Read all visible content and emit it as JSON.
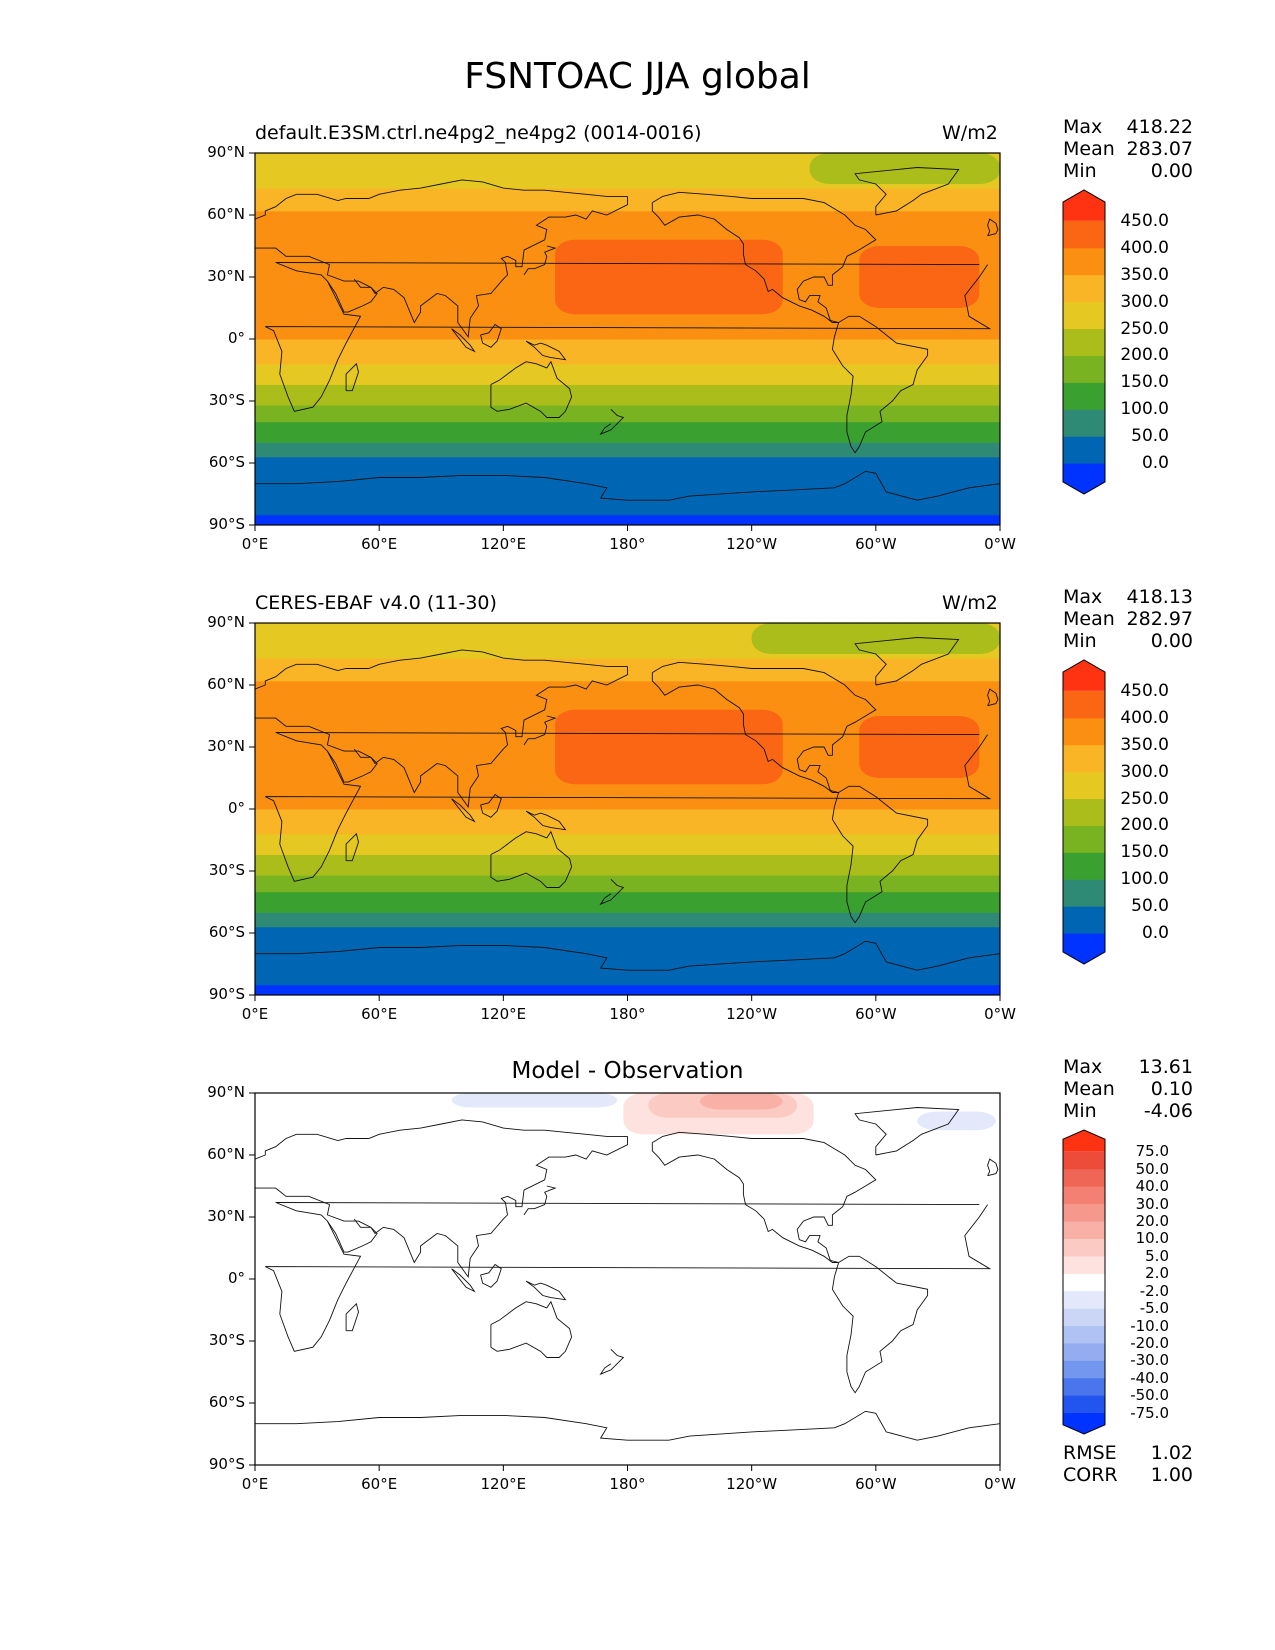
{
  "figure_title": "FSNTOAC JJA global",
  "colors": {
    "levels_main": [
      "#0033ff",
      "#0066b3",
      "#2e8a74",
      "#3aa130",
      "#7ab321",
      "#aabd1b",
      "#e6c822",
      "#fab526",
      "#fa8f11",
      "#fa6614",
      "#ff3311"
    ],
    "levels_diff": [
      "#0033ff",
      "#2255f0",
      "#4a75ec",
      "#7396ee",
      "#93adf0",
      "#b0c2f3",
      "#cbd6f6",
      "#e3e9fb",
      "#ffffff",
      "#fde2df",
      "#fbcac3",
      "#f9b1a7",
      "#f6998c",
      "#f38072",
      "#f06656",
      "#ee4c3b",
      "#ff3311"
    ]
  },
  "panels": [
    {
      "id": "test",
      "title": "default.E3SM.ctrl.ne4pg2_ne4pg2 (0014-0016)",
      "units": "W/m2",
      "stats": [
        {
          "label": "Max",
          "value": "418.22"
        },
        {
          "label": "Mean",
          "value": "283.07"
        },
        {
          "label": "Min",
          "value": "0.00"
        }
      ],
      "colorbar_ticks": [
        "450.0",
        "400.0",
        "350.0",
        "300.0",
        "250.0",
        "200.0",
        "150.0",
        "100.0",
        "50.0",
        "0.0"
      ],
      "lat_bands": [
        {
          "lat": [
            -90,
            -85
          ],
          "level": 0
        },
        {
          "lat": [
            -85,
            -57
          ],
          "level": 1
        },
        {
          "lat": [
            -57,
            -50
          ],
          "level": 2
        },
        {
          "lat": [
            -50,
            -40
          ],
          "level": 3
        },
        {
          "lat": [
            -40,
            -32
          ],
          "level": 4
        },
        {
          "lat": [
            -32,
            -22
          ],
          "level": 5
        },
        {
          "lat": [
            -22,
            -12
          ],
          "level": 6
        },
        {
          "lat": [
            -12,
            0
          ],
          "level": 7
        },
        {
          "lat": [
            0,
            13
          ],
          "level": 8
        },
        {
          "lat": [
            13,
            27
          ],
          "level": 8
        },
        {
          "lat": [
            27,
            62
          ],
          "level": 8
        },
        {
          "lat": [
            62,
            73
          ],
          "level": 7
        },
        {
          "lat": [
            73,
            90
          ],
          "level": 6
        }
      ],
      "patches": [
        {
          "lon": [
            145,
            255
          ],
          "lat": [
            12,
            48
          ],
          "level": 9
        },
        {
          "lon": [
            292,
            350
          ],
          "lat": [
            15,
            45
          ],
          "level": 9
        },
        {
          "lon": [
            268,
            360
          ],
          "lat": [
            75,
            90
          ],
          "level": 5
        }
      ]
    },
    {
      "id": "reference",
      "title": "CERES-EBAF v4.0 (11-30)",
      "units": "W/m2",
      "stats": [
        {
          "label": "Max",
          "value": "418.13"
        },
        {
          "label": "Mean",
          "value": "282.97"
        },
        {
          "label": "Min",
          "value": "0.00"
        }
      ],
      "colorbar_ticks": [
        "450.0",
        "400.0",
        "350.0",
        "300.0",
        "250.0",
        "200.0",
        "150.0",
        "100.0",
        "50.0",
        "0.0"
      ],
      "lat_bands": [
        {
          "lat": [
            -90,
            -85
          ],
          "level": 0
        },
        {
          "lat": [
            -85,
            -57
          ],
          "level": 1
        },
        {
          "lat": [
            -57,
            -50
          ],
          "level": 2
        },
        {
          "lat": [
            -50,
            -40
          ],
          "level": 3
        },
        {
          "lat": [
            -40,
            -32
          ],
          "level": 4
        },
        {
          "lat": [
            -32,
            -22
          ],
          "level": 5
        },
        {
          "lat": [
            -22,
            -12
          ],
          "level": 6
        },
        {
          "lat": [
            -12,
            0
          ],
          "level": 7
        },
        {
          "lat": [
            0,
            13
          ],
          "level": 8
        },
        {
          "lat": [
            13,
            27
          ],
          "level": 8
        },
        {
          "lat": [
            27,
            62
          ],
          "level": 8
        },
        {
          "lat": [
            62,
            73
          ],
          "level": 7
        },
        {
          "lat": [
            73,
            90
          ],
          "level": 6
        }
      ],
      "patches": [
        {
          "lon": [
            145,
            255
          ],
          "lat": [
            12,
            48
          ],
          "level": 9
        },
        {
          "lon": [
            292,
            350
          ],
          "lat": [
            15,
            45
          ],
          "level": 9
        },
        {
          "lon": [
            240,
            360
          ],
          "lat": [
            75,
            90
          ],
          "level": 5
        }
      ]
    },
    {
      "id": "difference",
      "title": "Model - Observation",
      "units": "",
      "stats": [
        {
          "label": "Max",
          "value": "13.61"
        },
        {
          "label": "Mean",
          "value": "0.10"
        },
        {
          "label": "Min",
          "value": "-4.06"
        }
      ],
      "colorbar_ticks": [
        "75.0",
        "50.0",
        "40.0",
        "30.0",
        "20.0",
        "10.0",
        "5.0",
        "2.0",
        "-2.0",
        "-5.0",
        "-10.0",
        "-20.0",
        "-30.0",
        "-40.0",
        "-50.0",
        "-75.0"
      ],
      "metrics": [
        {
          "label": "RMSE",
          "value": "1.02"
        },
        {
          "label": "CORR",
          "value": "1.00"
        }
      ],
      "patches": [
        {
          "lon": [
            95,
            175
          ],
          "lat": [
            83,
            90
          ],
          "level": 7
        },
        {
          "lon": [
            178,
            270
          ],
          "lat": [
            70,
            90
          ],
          "level": 9
        },
        {
          "lon": [
            190,
            262
          ],
          "lat": [
            78,
            90
          ],
          "level": 10
        },
        {
          "lon": [
            215,
            255
          ],
          "lat": [
            82,
            90
          ],
          "level": 11
        },
        {
          "lon": [
            320,
            358
          ],
          "lat": [
            72,
            81
          ],
          "level": 7
        }
      ]
    }
  ],
  "axes": {
    "x_ticks": [
      "0°E",
      "60°E",
      "120°E",
      "180°",
      "120°W",
      "60°W",
      "0°W"
    ],
    "y_ticks": [
      "90°N",
      "60°N",
      "30°N",
      "0°",
      "30°S",
      "60°S",
      "90°S"
    ]
  }
}
